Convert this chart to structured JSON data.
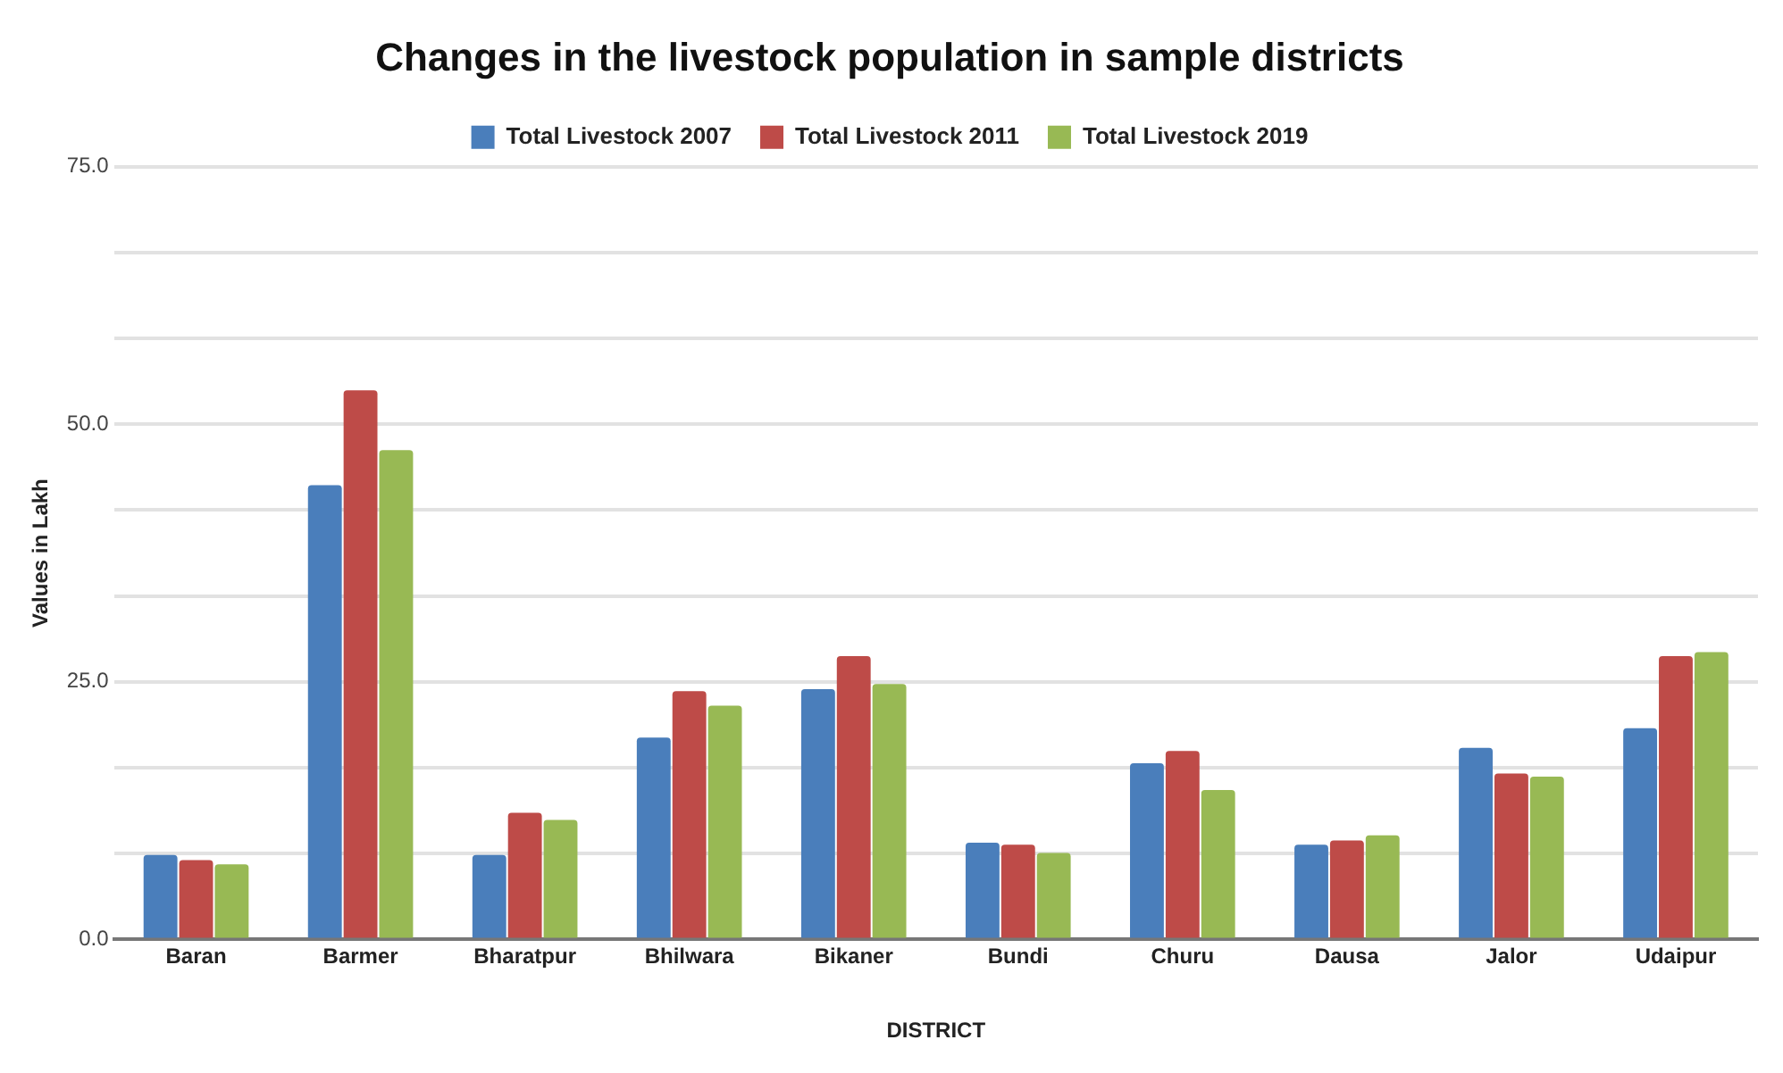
{
  "chart_data": {
    "type": "bar",
    "title": "Changes in the livestock population in sample districts",
    "xlabel": "DISTRICT",
    "ylabel": "Values in Lakh",
    "categories": [
      "Baran",
      "Barmer",
      "Bharatpur",
      "Bhilwara",
      "Bikaner",
      "Bundi",
      "Churu",
      "Dausa",
      "Jalor",
      "Udaipur"
    ],
    "series": [
      {
        "name": "Total Livestock 2007",
        "color": "#4a7ebb",
        "values": [
          8.2,
          44.1,
          8.2,
          19.6,
          24.3,
          9.4,
          17.1,
          9.2,
          18.6,
          20.5
        ]
      },
      {
        "name": "Total Livestock 2011",
        "color": "#be4b48",
        "values": [
          7.7,
          53.3,
          12.3,
          24.1,
          27.5,
          9.2,
          18.3,
          9.6,
          16.1,
          27.5
        ]
      },
      {
        "name": "Total Livestock 2019",
        "color": "#98b954",
        "values": [
          7.3,
          47.5,
          11.6,
          22.7,
          24.8,
          8.4,
          14.5,
          10.1,
          15.8,
          27.9
        ]
      }
    ],
    "ylim": [
      0,
      75
    ],
    "yticks": [
      {
        "value": 0,
        "label": "0.0"
      },
      {
        "value": 8.33,
        "label": null
      },
      {
        "value": 16.67,
        "label": null
      },
      {
        "value": 25,
        "label": "25.0"
      },
      {
        "value": 33.33,
        "label": null
      },
      {
        "value": 41.67,
        "label": null
      },
      {
        "value": 50,
        "label": "50.0"
      },
      {
        "value": 58.33,
        "label": null
      },
      {
        "value": 66.67,
        "label": null
      },
      {
        "value": 75,
        "label": "75.0"
      }
    ],
    "grid": "y",
    "legend": "top"
  }
}
